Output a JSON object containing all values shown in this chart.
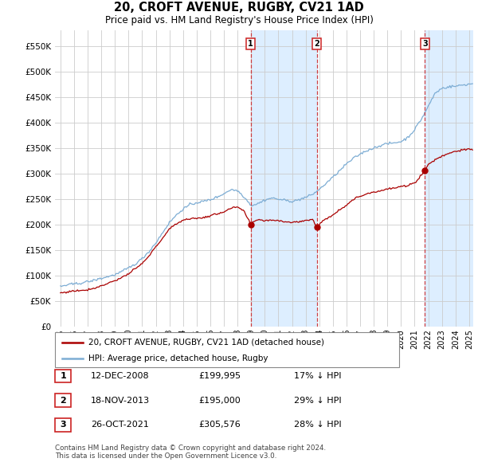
{
  "title": "20, CROFT AVENUE, RUGBY, CV21 1AD",
  "subtitle": "Price paid vs. HM Land Registry's House Price Index (HPI)",
  "legend_line1": "20, CROFT AVENUE, RUGBY, CV21 1AD (detached house)",
  "legend_line2": "HPI: Average price, detached house, Rugby",
  "table": [
    {
      "num": "1",
      "date": "12-DEC-2008",
      "price": "£199,995",
      "hpi": "17% ↓ HPI"
    },
    {
      "num": "2",
      "date": "18-NOV-2013",
      "price": "£195,000",
      "hpi": "29% ↓ HPI"
    },
    {
      "num": "3",
      "date": "26-OCT-2021",
      "price": "£305,576",
      "hpi": "28% ↓ HPI"
    }
  ],
  "footnote": "Contains HM Land Registry data © Crown copyright and database right 2024.\nThis data is licensed under the Open Government Licence v3.0.",
  "property_color": "#aa0000",
  "hpi_color": "#7dadd4",
  "shade_color": "#ddeeff",
  "vline_color": "#cc2222",
  "background_color": "#ffffff",
  "grid_color": "#cccccc",
  "sale_t": [
    2008.958,
    2013.833,
    2021.75
  ],
  "sale_prices": [
    199995,
    195000,
    305576
  ],
  "xlim_left": 1994.6,
  "xlim_right": 2025.3,
  "ylim": [
    0,
    580000
  ],
  "yticks": [
    0,
    50000,
    100000,
    150000,
    200000,
    250000,
    300000,
    350000,
    400000,
    450000,
    500000,
    550000
  ],
  "xtick_years": [
    1995,
    1996,
    1997,
    1998,
    1999,
    2000,
    2001,
    2002,
    2003,
    2004,
    2005,
    2006,
    2007,
    2008,
    2009,
    2010,
    2011,
    2012,
    2013,
    2014,
    2015,
    2016,
    2017,
    2018,
    2019,
    2020,
    2021,
    2022,
    2023,
    2024,
    2025
  ]
}
